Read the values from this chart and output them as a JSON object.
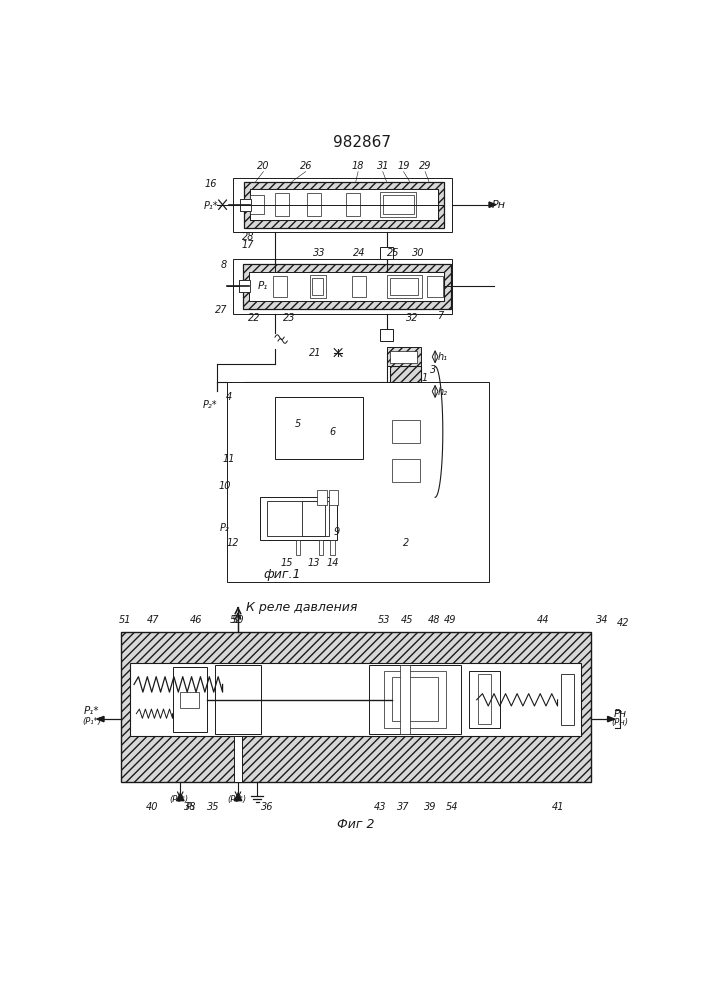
{
  "title": "982867",
  "title_fontsize": 11,
  "fig1_caption": "фиг.1",
  "fig2_caption": "Фиг 2",
  "fig2_arrow_text": "К реле давления",
  "bg_color": "#ffffff",
  "line_color": "#1a1a1a",
  "hatch_density": 4,
  "label_fontsize": 7
}
